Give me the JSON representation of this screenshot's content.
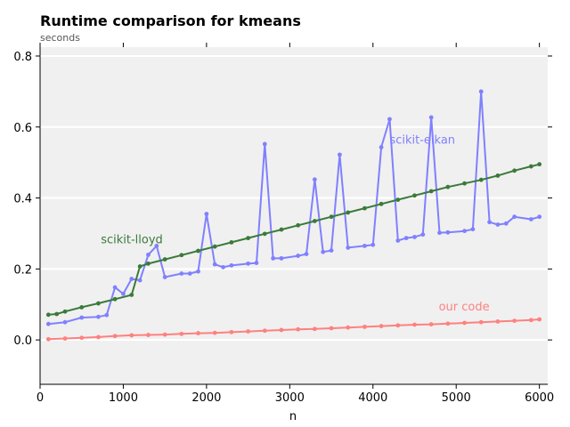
{
  "chart_data": {
    "type": "line",
    "title": "Runtime comparison for kmeans",
    "subtitle": "seconds",
    "xlabel": "n",
    "ylabel": "",
    "xlim": [
      0,
      6100
    ],
    "ylim": [
      -0.125,
      0.825
    ],
    "xticks": [
      0,
      1000,
      2000,
      3000,
      4000,
      5000,
      6000
    ],
    "yticks": [
      0.0,
      0.2,
      0.4,
      0.6,
      0.8
    ],
    "ytick_labels": [
      "0.0",
      "0.2",
      "0.4",
      "0.6",
      "0.8"
    ],
    "grid": "horizontal",
    "legend": "none",
    "background": "#f0f0f0",
    "series": [
      {
        "name": "scikit-elkan",
        "color": "#8080ff",
        "label_at": [
          4200,
          0.565
        ],
        "x": [
          100,
          300,
          500,
          700,
          800,
          900,
          1000,
          1100,
          1200,
          1300,
          1400,
          1500,
          1700,
          1800,
          1900,
          2000,
          2100,
          2200,
          2300,
          2500,
          2600,
          2700,
          2800,
          2900,
          3100,
          3200,
          3300,
          3400,
          3500,
          3600,
          3700,
          3900,
          4000,
          4100,
          4200,
          4300,
          4400,
          4500,
          4600,
          4700,
          4800,
          4900,
          5100,
          5200,
          5300,
          5400,
          5500,
          5600,
          5700,
          5900,
          6000
        ],
        "y": [
          0.045,
          0.05,
          0.063,
          0.065,
          0.07,
          0.148,
          0.13,
          0.172,
          0.168,
          0.24,
          0.265,
          0.177,
          0.187,
          0.187,
          0.193,
          0.355,
          0.213,
          0.205,
          0.21,
          0.215,
          0.217,
          0.552,
          0.23,
          0.23,
          0.237,
          0.242,
          0.452,
          0.248,
          0.252,
          0.522,
          0.26,
          0.265,
          0.268,
          0.543,
          0.622,
          0.28,
          0.287,
          0.29,
          0.297,
          0.627,
          0.302,
          0.303,
          0.307,
          0.312,
          0.7,
          0.332,
          0.325,
          0.328,
          0.347,
          0.34,
          0.347
        ]
      },
      {
        "name": "scikit-lloyd",
        "color": "#3a7a3a",
        "label_at": [
          730,
          0.285
        ],
        "x": [
          100,
          200,
          300,
          500,
          700,
          900,
          1100,
          1200,
          1300,
          1500,
          1700,
          1900,
          2100,
          2300,
          2500,
          2700,
          2900,
          3100,
          3300,
          3500,
          3700,
          3900,
          4100,
          4300,
          4500,
          4700,
          4900,
          5100,
          5300,
          5500,
          5700,
          5900,
          6000
        ],
        "y": [
          0.071,
          0.073,
          0.08,
          0.092,
          0.103,
          0.115,
          0.127,
          0.207,
          0.215,
          0.227,
          0.239,
          0.251,
          0.263,
          0.275,
          0.287,
          0.299,
          0.311,
          0.323,
          0.335,
          0.347,
          0.359,
          0.371,
          0.383,
          0.395,
          0.407,
          0.419,
          0.431,
          0.441,
          0.451,
          0.463,
          0.477,
          0.489,
          0.495
        ]
      },
      {
        "name": "our code",
        "color": "#ff8080",
        "label_at": [
          4790,
          0.095
        ],
        "x": [
          100,
          300,
          500,
          700,
          900,
          1100,
          1300,
          1500,
          1700,
          1900,
          2100,
          2300,
          2500,
          2700,
          2900,
          3100,
          3300,
          3500,
          3700,
          3900,
          4100,
          4300,
          4500,
          4700,
          4900,
          5100,
          5300,
          5500,
          5700,
          5900,
          6000
        ],
        "y": [
          0.002,
          0.004,
          0.006,
          0.008,
          0.011,
          0.013,
          0.014,
          0.015,
          0.017,
          0.019,
          0.02,
          0.022,
          0.024,
          0.026,
          0.028,
          0.03,
          0.031,
          0.033,
          0.035,
          0.037,
          0.039,
          0.041,
          0.043,
          0.044,
          0.046,
          0.048,
          0.05,
          0.052,
          0.054,
          0.056,
          0.058
        ]
      }
    ]
  }
}
